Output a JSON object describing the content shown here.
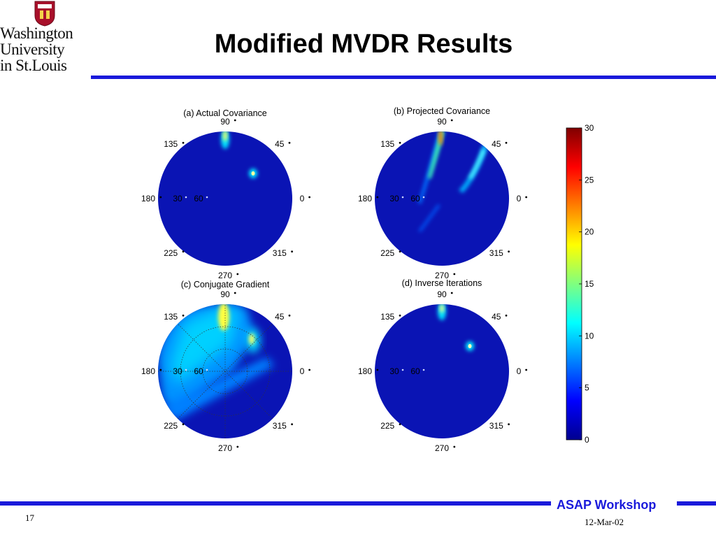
{
  "header": {
    "title": "Modified MVDR Results",
    "logo_lines": [
      "Washington",
      "University",
      "in St.Louis"
    ]
  },
  "footer": {
    "page_number": "17",
    "workshop": "ASAP Workshop",
    "date": "12-Mar-02"
  },
  "chart_data": {
    "type": "heatmap",
    "panels": [
      {
        "title": "(a) Actual Covariance",
        "angle_labels": [
          "90",
          "45",
          "0",
          "315",
          "270",
          "225",
          "180",
          "135"
        ],
        "radial_labels": [
          "30",
          "60"
        ]
      },
      {
        "title": "(b) Projected Covariance",
        "angle_labels": [
          "90",
          "45",
          "0",
          "315",
          "270",
          "225",
          "180",
          "135"
        ],
        "radial_labels": [
          "30",
          "60"
        ]
      },
      {
        "title": "(c) Conjugate Gradient",
        "angle_labels": [
          "90",
          "45",
          "0",
          "315",
          "270",
          "225",
          "180",
          "135"
        ],
        "radial_labels": [
          "30",
          "60"
        ]
      },
      {
        "title": "(d) Inverse Iterations",
        "angle_labels": [
          "90",
          "45",
          "0",
          "315",
          "270",
          "225",
          "180",
          "135"
        ],
        "radial_labels": [
          "30",
          "60"
        ]
      }
    ],
    "colorbar": {
      "ticks": [
        "30",
        "25",
        "20",
        "15",
        "10",
        "5",
        "0"
      ],
      "range": [
        0,
        30
      ]
    }
  },
  "colors": {
    "accent": "#1a1adb",
    "background_field": "#0a14b4"
  }
}
